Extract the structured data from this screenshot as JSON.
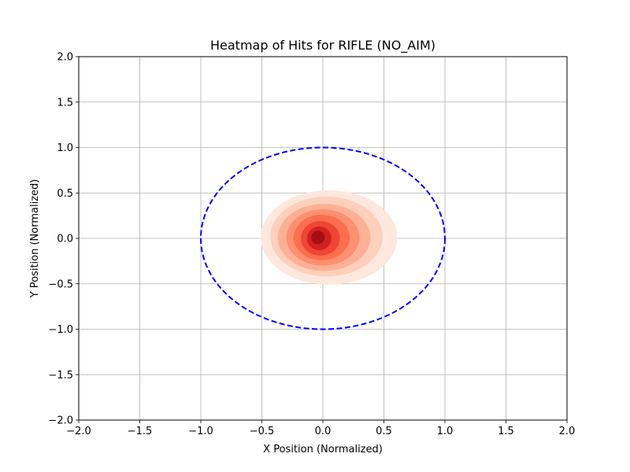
{
  "chart_data": {
    "type": "heatmap",
    "title": "Heatmap of Hits for RIFLE (NO_AIM)",
    "xlabel": "X Position (Normalized)",
    "ylabel": "Y Position (Normalized)",
    "xlim": [
      -2.0,
      2.0
    ],
    "ylim": [
      -2.0,
      2.0
    ],
    "xticks": [
      -2.0,
      -1.5,
      -1.0,
      -0.5,
      0.0,
      0.5,
      1.0,
      1.5,
      2.0
    ],
    "yticks": [
      -2.0,
      -1.5,
      -1.0,
      -0.5,
      0.0,
      0.5,
      1.0,
      1.5,
      2.0
    ],
    "xtick_labels": [
      "−2.0",
      "−1.5",
      "−1.0",
      "−0.5",
      "0.0",
      "0.5",
      "1.0",
      "1.5",
      "2.0"
    ],
    "ytick_labels": [
      "−2.0",
      "−1.5",
      "−1.0",
      "−0.5",
      "0.0",
      "0.5",
      "1.0",
      "1.5",
      "2.0"
    ],
    "grid": true,
    "colormap": "Reds",
    "density_center": [
      -0.03,
      0.0
    ],
    "density_levels": [
      {
        "level": 1,
        "color": "#fee8dd",
        "cx": 0.05,
        "cy": 0.01,
        "rx": 0.56,
        "ry": 0.52
      },
      {
        "level": 2,
        "color": "#fdd0bb",
        "cx": 0.03,
        "cy": 0.02,
        "rx": 0.46,
        "ry": 0.44
      },
      {
        "level": 3,
        "color": "#fcb196",
        "cx": 0.01,
        "cy": 0.01,
        "rx": 0.38,
        "ry": 0.37
      },
      {
        "level": 4,
        "color": "#fc9070",
        "cx": 0.0,
        "cy": 0.01,
        "rx": 0.3,
        "ry": 0.31
      },
      {
        "level": 5,
        "color": "#fb6e4e",
        "cx": -0.01,
        "cy": 0.01,
        "rx": 0.23,
        "ry": 0.25
      },
      {
        "level": 6,
        "color": "#ef4533",
        "cx": -0.02,
        "cy": 0.0,
        "rx": 0.16,
        "ry": 0.19
      },
      {
        "level": 7,
        "color": "#d32020",
        "cx": -0.03,
        "cy": 0.0,
        "rx": 0.1,
        "ry": 0.13
      },
      {
        "level": 8,
        "color": "#a60f15",
        "cx": -0.04,
        "cy": 0.01,
        "rx": 0.055,
        "ry": 0.075
      }
    ],
    "boundary": {
      "shape": "circle",
      "cx": 0.0,
      "cy": 0.0,
      "r": 1.0,
      "color": "#0000ff",
      "style": "dashed"
    }
  }
}
